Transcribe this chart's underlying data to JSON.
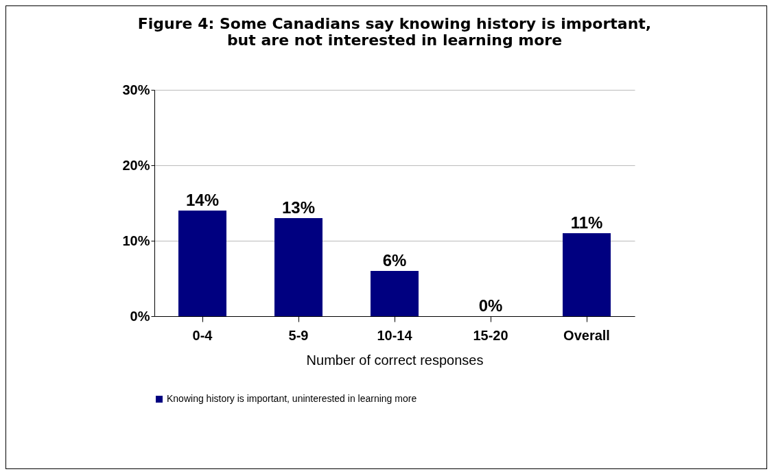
{
  "chart_data": {
    "type": "bar",
    "title": "Figure 4: Some Canadians say knowing history is important,\nbut are not interested in learning more",
    "xlabel": "Number of correct responses",
    "categories": [
      "0-4",
      "5-9",
      "10-14",
      "15-20",
      "Overall"
    ],
    "series": [
      {
        "name": "Knowing history is important, uninterested in learning more",
        "color": "#000080",
        "values": [
          14,
          13,
          6,
          0,
          11
        ],
        "value_labels": [
          "14%",
          "13%",
          "6%",
          "0%",
          "11%"
        ]
      }
    ],
    "ylim": [
      0,
      30
    ],
    "yticks": [
      {
        "value": 0,
        "label": "0%"
      },
      {
        "value": 10,
        "label": "10%"
      },
      {
        "value": 20,
        "label": "20%"
      },
      {
        "value": 30,
        "label": "30%"
      }
    ],
    "grid": "y",
    "legend": "bottom"
  }
}
